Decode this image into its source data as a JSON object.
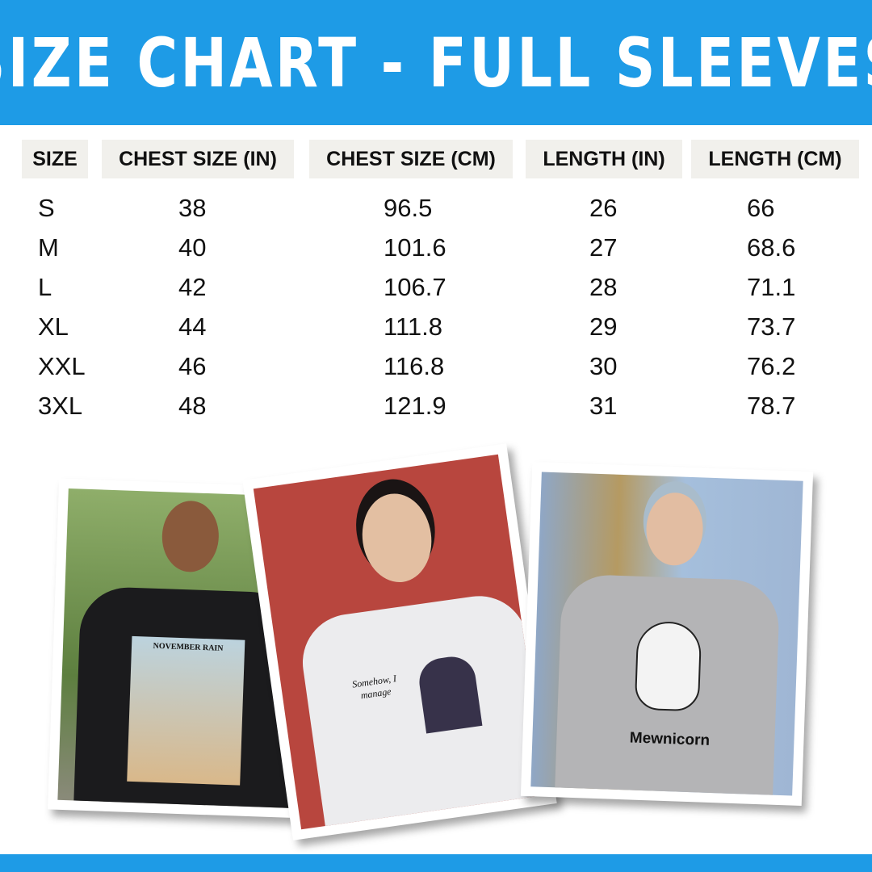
{
  "title": "SIZE CHART - FULL SLEEVES",
  "colors": {
    "accent": "#1e9be6",
    "header_cell": "#f1f0ec"
  },
  "table": {
    "headers": [
      "SIZE",
      "CHEST SIZE (IN)",
      "CHEST SIZE (CM)",
      "LENGTH (IN)",
      "LENGTH (CM)"
    ],
    "rows": [
      [
        "S",
        "38",
        "96.5",
        "26",
        "66"
      ],
      [
        "M",
        "40",
        "101.6",
        "27",
        "68.6"
      ],
      [
        "L",
        "42",
        "106.7",
        "28",
        "71.1"
      ],
      [
        "XL",
        "44",
        "111.8",
        "29",
        "73.7"
      ],
      [
        "XXL",
        "46",
        "116.8",
        "30",
        "76.2"
      ],
      [
        "3XL",
        "48",
        "121.9",
        "31",
        "78.7"
      ]
    ]
  },
  "photos": [
    {
      "print_text": "NOVEMBER RAIN"
    },
    {
      "print_text": "Somehow, I manage"
    },
    {
      "print_text": "Mewnicorn"
    }
  ]
}
